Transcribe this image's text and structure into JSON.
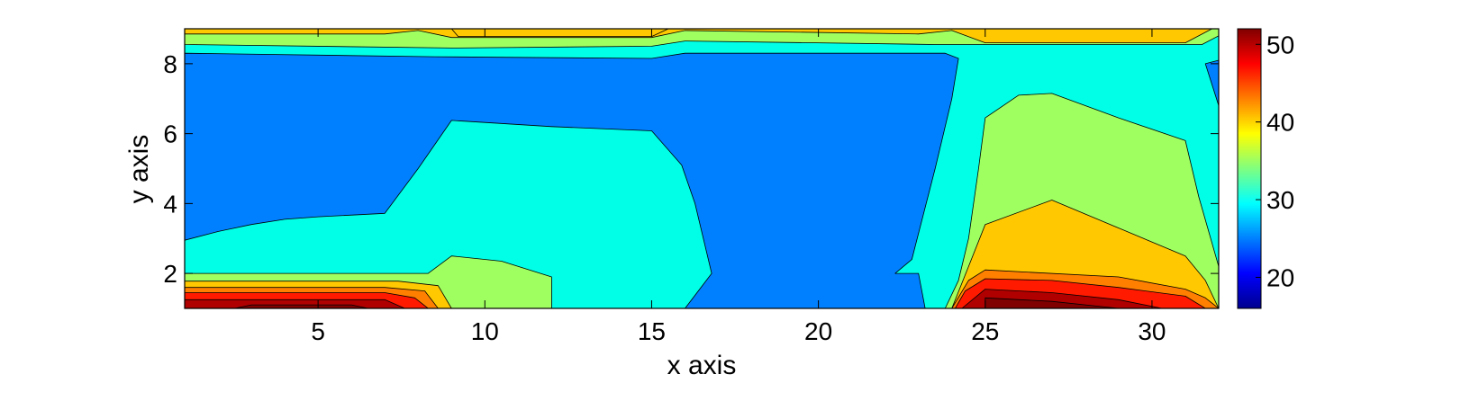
{
  "chart_data": {
    "type": "heatmap",
    "subtype": "filled-contour",
    "title": "",
    "xlabel": "x axis",
    "ylabel": "y axis",
    "xlim": [
      1,
      32
    ],
    "ylim": [
      1,
      9
    ],
    "xticks": [
      5,
      10,
      15,
      20,
      25,
      30
    ],
    "yticks": [
      2,
      4,
      6,
      8
    ],
    "grid": false,
    "colorbar": {
      "position": "right",
      "colormap": "jet",
      "range": [
        16,
        52
      ],
      "ticks": [
        20,
        30,
        40,
        50
      ]
    },
    "levels": [
      {
        "name": "level-1",
        "value": 26,
        "color": "#0080ff"
      },
      {
        "name": "level-2",
        "value": 30,
        "color": "#00ffe6"
      },
      {
        "name": "level-3",
        "value": 35,
        "color": "#a0ff60"
      },
      {
        "name": "level-4",
        "value": 40,
        "color": "#ffc800"
      },
      {
        "name": "level-5",
        "value": 44,
        "color": "#ff8000"
      },
      {
        "name": "level-6",
        "value": 47,
        "color": "#ff1a00"
      },
      {
        "name": "level-7",
        "value": 50,
        "color": "#b00000"
      },
      {
        "name": "level-8",
        "value": 52,
        "color": "#800000"
      }
    ],
    "regions": [
      {
        "name": "background-cyan",
        "level": 30,
        "points": [
          [
            1,
            1
          ],
          [
            32,
            1
          ],
          [
            32,
            9
          ],
          [
            1,
            9
          ]
        ]
      },
      {
        "name": "bottom-left-green",
        "level": 35,
        "points": [
          [
            1,
            1
          ],
          [
            12,
            1
          ],
          [
            12,
            1.9
          ],
          [
            10.5,
            2.35
          ],
          [
            9,
            2.5
          ],
          [
            8.3,
            2
          ],
          [
            1,
            2
          ]
        ]
      },
      {
        "name": "bottom-left-yellow",
        "level": 40,
        "points": [
          [
            1,
            1
          ],
          [
            9,
            1
          ],
          [
            8.6,
            1.65
          ],
          [
            7.4,
            1.78
          ],
          [
            1,
            1.78
          ]
        ]
      },
      {
        "name": "bottom-left-orange",
        "level": 44,
        "points": [
          [
            1,
            1
          ],
          [
            8.6,
            1
          ],
          [
            8.2,
            1.5
          ],
          [
            7,
            1.6
          ],
          [
            1,
            1.6
          ]
        ]
      },
      {
        "name": "bottom-left-red",
        "level": 47,
        "points": [
          [
            1,
            1
          ],
          [
            8.3,
            1
          ],
          [
            7.9,
            1.3
          ],
          [
            7,
            1.45
          ],
          [
            1,
            1.45
          ]
        ]
      },
      {
        "name": "bottom-left-darkred",
        "level": 50,
        "points": [
          [
            1,
            1
          ],
          [
            7.6,
            1
          ],
          [
            7,
            1.25
          ],
          [
            1,
            1.25
          ]
        ]
      },
      {
        "name": "bottom-left-maroon",
        "level": 52,
        "points": [
          [
            2.5,
            1
          ],
          [
            6.5,
            1
          ],
          [
            6,
            1.1
          ],
          [
            3,
            1.1
          ]
        ]
      },
      {
        "name": "main-blue-region",
        "level": 26,
        "points": [
          [
            1,
            2.95
          ],
          [
            2,
            3.2
          ],
          [
            3,
            3.4
          ],
          [
            4,
            3.55
          ],
          [
            5,
            3.62
          ],
          [
            7,
            3.72
          ],
          [
            8,
            5
          ],
          [
            9,
            6.38
          ],
          [
            12,
            6.2
          ],
          [
            15,
            6.08
          ],
          [
            15.9,
            5.1
          ],
          [
            16.3,
            4
          ],
          [
            16.8,
            2
          ],
          [
            16,
            1
          ],
          [
            23.2,
            1
          ],
          [
            23,
            2
          ],
          [
            22.3,
            2
          ],
          [
            22.8,
            2.4
          ],
          [
            23.5,
            5
          ],
          [
            24,
            7
          ],
          [
            24.2,
            8.15
          ],
          [
            23.8,
            8.3
          ],
          [
            16,
            8.3
          ],
          [
            15,
            8.15
          ],
          [
            8.5,
            8.2
          ],
          [
            1,
            8.3
          ]
        ]
      },
      {
        "name": "right-edge-blue",
        "level": 26,
        "points": [
          [
            32,
            6.8
          ],
          [
            31.6,
            8
          ],
          [
            32,
            8.1
          ]
        ]
      },
      {
        "name": "right-green",
        "level": 35,
        "points": [
          [
            23.8,
            1
          ],
          [
            32,
            1
          ],
          [
            32,
            2.2
          ],
          [
            31.4,
            4.2
          ],
          [
            31,
            5.8
          ],
          [
            29,
            6.45
          ],
          [
            27,
            7.15
          ],
          [
            26,
            7.1
          ],
          [
            25,
            6.45
          ],
          [
            24.8,
            5
          ],
          [
            24.5,
            3
          ],
          [
            24.2,
            1.8
          ]
        ]
      },
      {
        "name": "right-yellow",
        "level": 40,
        "points": [
          [
            24,
            1
          ],
          [
            32,
            1
          ],
          [
            31.6,
            1.8
          ],
          [
            31,
            2.5
          ],
          [
            29,
            3.3
          ],
          [
            27,
            4.1
          ],
          [
            25,
            3.4
          ],
          [
            24.5,
            2.2
          ]
        ]
      },
      {
        "name": "right-orange",
        "level": 44,
        "points": [
          [
            24,
            1
          ],
          [
            32,
            1
          ],
          [
            31.6,
            1.3
          ],
          [
            31,
            1.55
          ],
          [
            29,
            1.9
          ],
          [
            25,
            2.1
          ],
          [
            24.5,
            1.8
          ]
        ]
      },
      {
        "name": "right-red",
        "level": 47,
        "points": [
          [
            24.1,
            1
          ],
          [
            31.6,
            1
          ],
          [
            31,
            1.35
          ],
          [
            29,
            1.6
          ],
          [
            27,
            1.8
          ],
          [
            25,
            1.85
          ],
          [
            24.4,
            1.5
          ]
        ]
      },
      {
        "name": "right-darkred",
        "level": 50,
        "points": [
          [
            24.3,
            1
          ],
          [
            30.3,
            1
          ],
          [
            29,
            1.25
          ],
          [
            27,
            1.45
          ],
          [
            25,
            1.55
          ]
        ]
      },
      {
        "name": "right-maroon",
        "level": 52,
        "points": [
          [
            25,
            1
          ],
          [
            29,
            1
          ],
          [
            27,
            1.2
          ],
          [
            25,
            1.3
          ]
        ]
      },
      {
        "name": "top-green-band",
        "level": 35,
        "points": [
          [
            1,
            8.55
          ],
          [
            9,
            8.45
          ],
          [
            15,
            8.5
          ],
          [
            16,
            8.65
          ],
          [
            23.5,
            8.55
          ],
          [
            25,
            8.55
          ],
          [
            31.5,
            8.55
          ],
          [
            32,
            8.8
          ],
          [
            32,
            9
          ],
          [
            1,
            9
          ]
        ]
      },
      {
        "name": "top-yellow-band",
        "level": 40,
        "points": [
          [
            1,
            8.85
          ],
          [
            7,
            8.85
          ],
          [
            8,
            8.95
          ],
          [
            9,
            8.75
          ],
          [
            15,
            8.75
          ],
          [
            16,
            8.95
          ],
          [
            23,
            8.85
          ],
          [
            24,
            8.95
          ],
          [
            25,
            8.6
          ],
          [
            31,
            8.6
          ],
          [
            31.8,
            9
          ],
          [
            1,
            9
          ]
        ]
      },
      {
        "name": "top-yellow-cap",
        "level": 40,
        "points": [
          [
            9,
            9
          ],
          [
            9.2,
            8.78
          ],
          [
            15,
            8.78
          ],
          [
            15.5,
            9
          ]
        ]
      }
    ]
  }
}
